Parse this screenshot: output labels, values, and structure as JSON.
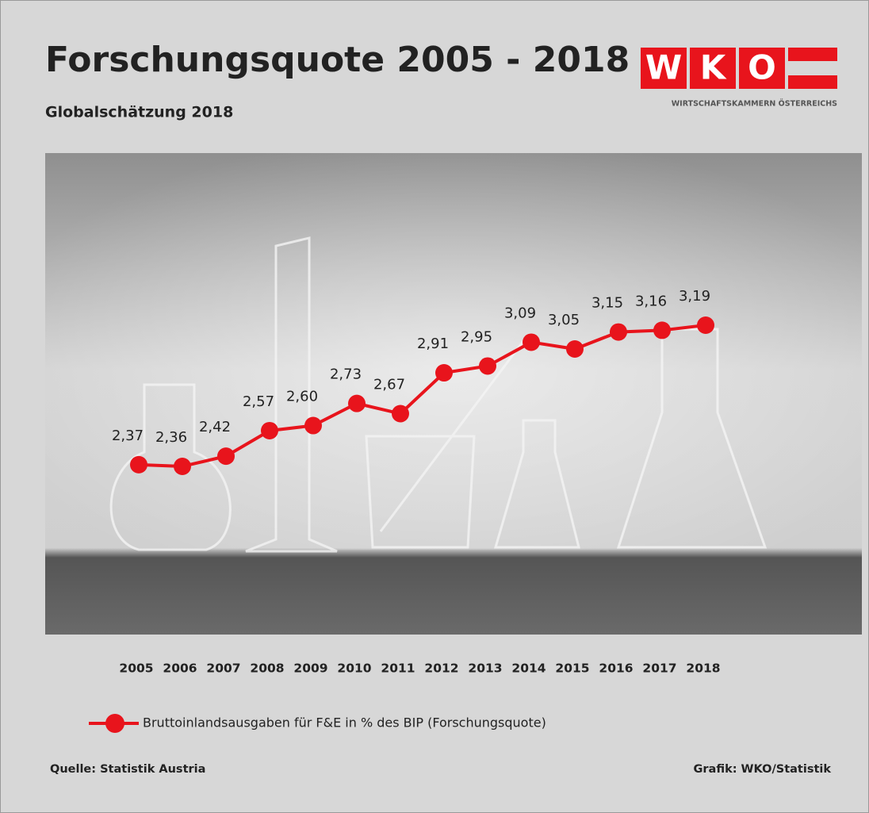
{
  "logo": {
    "letters": [
      "W",
      "K",
      "O"
    ],
    "tagline": "WIRTSCHAFTSKAMMERN ÖSTERREICHS"
  },
  "chart_data": {
    "type": "line",
    "title": "Forschungsquote 2005 - 2018",
    "subtitle": "Globalschätzung 2018",
    "categories": [
      "2005",
      "2006",
      "2007",
      "2008",
      "2009",
      "2010",
      "2011",
      "2012",
      "2013",
      "2014",
      "2015",
      "2016",
      "2017",
      "2018"
    ],
    "series": [
      {
        "name": "Bruttoinlandsausgaben für F&E in % des BIP (Forschungsquote)",
        "color": "#e8141c",
        "values": [
          2.37,
          2.36,
          2.42,
          2.57,
          2.6,
          2.73,
          2.67,
          2.91,
          2.95,
          3.09,
          3.05,
          3.15,
          3.16,
          3.19
        ],
        "value_labels": [
          "2,37",
          "2,36",
          "2,42",
          "2,57",
          "2,60",
          "2,73",
          "2,67",
          "2,91",
          "2,95",
          "3,09",
          "3,05",
          "3,15",
          "3,16",
          "3,19"
        ]
      }
    ],
    "source": "Quelle: Statistik Austria",
    "credit": "Grafik: WKO/Statistik"
  }
}
